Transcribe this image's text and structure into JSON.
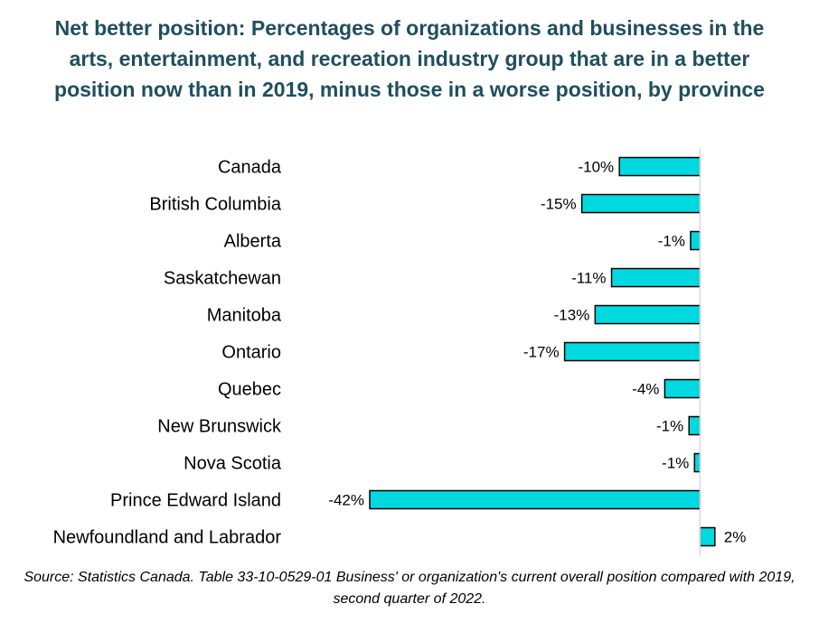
{
  "chart_data": {
    "type": "bar",
    "orientation": "horizontal",
    "title": "Net better position: Percentages of organizations and businesses in the arts, entertainment, and recreation industry group that are in a better position now than in 2019, minus those in a worse position, by province",
    "categories": [
      "Canada",
      "British Columbia",
      "Alberta",
      "Saskatchewan",
      "Manitoba",
      "Ontario",
      "Quebec",
      "New Brunswick",
      "Nova Scotia",
      "Prince Edward Island",
      "Newfoundland and Labrador"
    ],
    "values": [
      -10.3,
      -15.1,
      -1.2,
      -11.3,
      -13.4,
      -17.3,
      -4.5,
      -1.4,
      -0.7,
      -42.2,
      1.9
    ],
    "data_labels": [
      "-10%",
      "-15%",
      "-1%",
      "-11%",
      "-13%",
      "-17%",
      "-4%",
      "-1%",
      "-1%",
      "-42%",
      "2%"
    ],
    "xlim": [
      -42.2,
      2.5
    ],
    "bar_color": "#00d9e0",
    "bar_border_color": "#000000",
    "grid": false,
    "legend": "none"
  },
  "source_note": "Source: Statistics Canada. Table 33-10-0529-01  Business' or organization's current overall position compared with 2019, second quarter of 2022."
}
